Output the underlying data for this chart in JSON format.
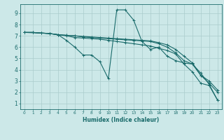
{
  "xlabel": "Humidex (Indice chaleur)",
  "bg_color": "#cce8e8",
  "grid_color": "#aacccc",
  "line_color": "#1a6b6b",
  "lines": [
    {
      "x": [
        0,
        1,
        2,
        3,
        4,
        5,
        6,
        7,
        8,
        9,
        10,
        11,
        12,
        13,
        14,
        15,
        16,
        17,
        18,
        19,
        20,
        21,
        22,
        23
      ],
      "y": [
        7.3,
        7.3,
        7.25,
        7.2,
        7.1,
        7.0,
        6.85,
        6.8,
        6.75,
        6.7,
        6.6,
        6.5,
        6.4,
        6.3,
        6.2,
        6.1,
        5.9,
        5.7,
        5.4,
        4.5,
        3.8,
        2.8,
        2.6,
        1.3
      ]
    },
    {
      "x": [
        0,
        1,
        2,
        3,
        4,
        5,
        6,
        7,
        8,
        9,
        10,
        11,
        12,
        13,
        14,
        15,
        16,
        17,
        18,
        19,
        20,
        21,
        22,
        23
      ],
      "y": [
        7.3,
        7.3,
        7.25,
        7.2,
        7.1,
        7.05,
        7.0,
        6.9,
        6.85,
        6.8,
        6.75,
        6.7,
        6.65,
        6.6,
        6.55,
        6.5,
        6.3,
        6.0,
        5.5,
        4.8,
        4.5,
        3.5,
        2.8,
        2.0
      ]
    },
    {
      "x": [
        0,
        1,
        2,
        3,
        4,
        5,
        6,
        7,
        8,
        9,
        10,
        11,
        12,
        13,
        14,
        15,
        16,
        17,
        18,
        19,
        20,
        21,
        22,
        23
      ],
      "y": [
        7.3,
        7.3,
        7.25,
        7.2,
        7.1,
        7.05,
        7.0,
        6.95,
        6.9,
        6.85,
        6.8,
        6.75,
        6.7,
        6.65,
        6.6,
        6.55,
        6.4,
        6.2,
        5.8,
        5.2,
        4.6,
        3.5,
        3.0,
        2.2
      ]
    },
    {
      "x": [
        0,
        3,
        4,
        5,
        6,
        7,
        8,
        9,
        10,
        11,
        12,
        13,
        14,
        15,
        16,
        17,
        18,
        19,
        20,
        21,
        22,
        23
      ],
      "y": [
        7.3,
        7.2,
        7.1,
        6.6,
        6.0,
        5.3,
        5.3,
        4.7,
        3.2,
        9.3,
        9.3,
        8.4,
        6.5,
        5.8,
        6.0,
        5.2,
        4.8,
        4.6,
        4.5,
        3.7,
        2.7,
        1.3
      ]
    }
  ],
  "xlim": [
    -0.5,
    23.5
  ],
  "ylim": [
    0.5,
    9.8
  ],
  "yticks": [
    1,
    2,
    3,
    4,
    5,
    6,
    7,
    8,
    9
  ],
  "xticks": [
    0,
    1,
    2,
    3,
    4,
    5,
    6,
    7,
    8,
    9,
    10,
    11,
    12,
    13,
    14,
    15,
    16,
    17,
    18,
    19,
    20,
    21,
    22,
    23
  ]
}
